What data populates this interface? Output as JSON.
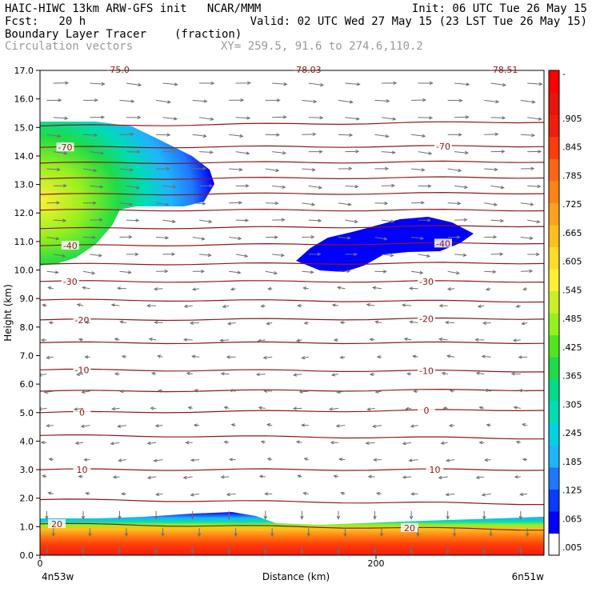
{
  "header": {
    "line1_left": "HAIC-HIWC 13km ARW-GFS init   NCAR/MMM",
    "line1_right": "Init: 06 UTC Tue 26 May 15",
    "line2_left": "Fcst:   20 h",
    "line2_right": "Valid: 02 UTC Wed 27 May 15 (23 LST Tue 26 May 15)",
    "line3_left": "Boundary Layer Tracer",
    "line3_units": "(fraction)",
    "line4_left": "Circulation vectors",
    "line4_right": "XY= 259.5, 91.6 to 274.6,110.2"
  },
  "colors": {
    "isotherm": "#8b1a1a",
    "vector": "#707070",
    "colorbar": [
      "#ffffff",
      "#0000ff",
      "#0a3cff",
      "#1e78ff",
      "#1eb4ff",
      "#00d2e6",
      "#00dcb4",
      "#00dc8c",
      "#1edc46",
      "#50e61e",
      "#96f01e",
      "#c8f028",
      "#fff032",
      "#ffdc28",
      "#ffbe1e",
      "#ffa01e",
      "#ff8214",
      "#ff6414",
      "#ff3c0a",
      "#f01e0a",
      "#e6140a",
      "#ff0000"
    ]
  },
  "chart_data": {
    "type": "heatmap",
    "title": "Boundary Layer Tracer",
    "units": "(fraction)",
    "overlay": "Circulation vectors",
    "xlabel": "Distance (km)",
    "ylabel": "Height (km)",
    "xlim": [
      0,
      300
    ],
    "ylim": [
      0,
      17
    ],
    "x_ticks": [
      {
        "value": 0,
        "label": "0"
      },
      {
        "value": 200,
        "label": "200"
      }
    ],
    "x_end_labels": {
      "left": "4n53w",
      "right": "6n51w"
    },
    "y_ticks": [
      "0.0",
      "1.0",
      "2.0",
      "3.0",
      "4.0",
      "5.0",
      "6.0",
      "7.0",
      "8.0",
      "9.0",
      "10.0",
      "11.0",
      "12.0",
      "13.0",
      "14.0",
      "15.0",
      "16.0",
      "17.0"
    ],
    "colorbar_labels": [
      ".005",
      ".065",
      ".125",
      ".185",
      ".245",
      ".305",
      ".365",
      ".425",
      ".485",
      ".545",
      ".605",
      ".665",
      ".725",
      ".785",
      ".845",
      ".905",
      "-"
    ],
    "isotherms": [
      {
        "label": "20",
        "h0": 1.1,
        "h1": 0.9,
        "lx": [
          10,
          220
        ]
      },
      {
        "label": "",
        "h0": 1.95,
        "h1": 1.8
      },
      {
        "label": "10",
        "h0": 3.0,
        "h1": 3.0,
        "lx": [
          25,
          235
        ]
      },
      {
        "label": "",
        "h0": 4.2,
        "h1": 4.1
      },
      {
        "label": "0",
        "h0": 5.0,
        "h1": 5.1,
        "lx": [
          25,
          230
        ]
      },
      {
        "label": "",
        "h0": 5.75,
        "h1": 5.8
      },
      {
        "label": "-10",
        "h0": 6.5,
        "h1": 6.45,
        "lx": [
          25,
          230
        ]
      },
      {
        "label": "",
        "h0": 7.45,
        "h1": 7.45
      },
      {
        "label": "-20",
        "h0": 8.25,
        "h1": 8.3,
        "lx": [
          25,
          230
        ]
      },
      {
        "label": "",
        "h0": 8.95,
        "h1": 8.9
      },
      {
        "label": "-30",
        "h0": 9.6,
        "h1": 9.6,
        "lx": [
          18,
          230
        ]
      },
      {
        "label": "",
        "h0": 10.2,
        "h1": 10.25
      },
      {
        "label": "-40",
        "h0": 10.85,
        "h1": 10.95,
        "lx": [
          18,
          240
        ]
      },
      {
        "label": "",
        "h0": 11.45,
        "h1": 11.55
      },
      {
        "label": "",
        "h0": 12.1,
        "h1": 12.1
      },
      {
        "label": "",
        "h0": 12.65,
        "h1": 12.7
      },
      {
        "label": "",
        "h0": 13.2,
        "h1": 13.25
      },
      {
        "label": "",
        "h0": 13.75,
        "h1": 13.8
      },
      {
        "label": "-70",
        "h0": 14.3,
        "h1": 14.35,
        "lx": [
          15,
          240
        ]
      },
      {
        "label": "",
        "h0": 15.05,
        "h1": 15.2
      }
    ],
    "top_labels": [
      "-75.0",
      "-78.03",
      "-78.51"
    ]
  }
}
